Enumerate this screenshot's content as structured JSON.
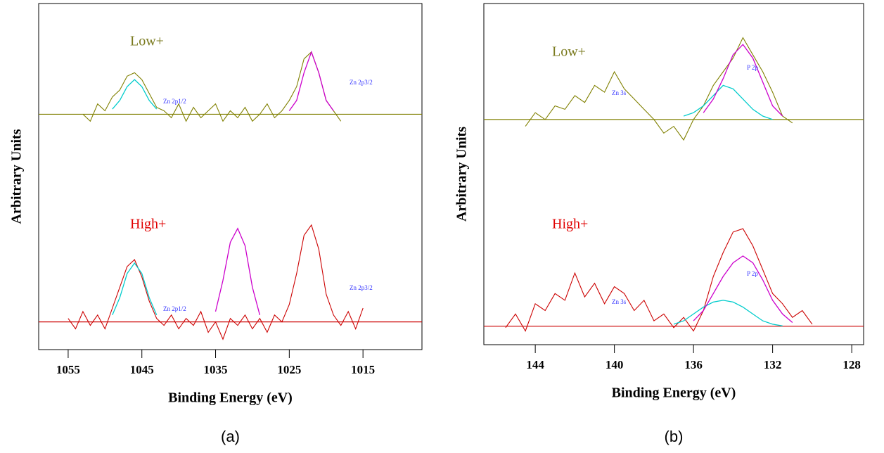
{
  "chart_data": [
    {
      "type": "line",
      "caption": "(a)",
      "xlabel": "Binding Energy (eV)",
      "ylabel": "Arbitrary Units",
      "xlim": [
        1059,
        1007
      ],
      "xticks": [
        1055,
        1045,
        1035,
        1025,
        1015
      ],
      "ylim": [
        0,
        100
      ],
      "x": [
        1055,
        1054,
        1053,
        1052,
        1051,
        1050,
        1049,
        1048,
        1047,
        1046,
        1045,
        1044,
        1043,
        1042,
        1041,
        1040,
        1039,
        1038,
        1037,
        1036,
        1035,
        1034,
        1033,
        1032,
        1031,
        1030,
        1029,
        1028,
        1027,
        1026,
        1025,
        1024,
        1023,
        1022,
        1021,
        1020,
        1019,
        1018,
        1017,
        1016,
        1015
      ],
      "baselines": [
        68,
        8
      ],
      "series": [
        {
          "name": "Low+",
          "color": "#808000",
          "values": [
            null,
            null,
            68,
            66,
            71,
            69,
            73,
            75,
            79,
            80,
            78,
            74,
            70,
            69,
            67,
            71,
            66,
            70,
            67,
            69,
            71,
            66,
            69,
            67,
            70,
            66,
            68,
            71,
            67,
            69,
            72,
            76,
            84,
            86,
            80,
            72,
            69,
            66,
            null,
            null,
            null
          ]
        },
        {
          "name": "High+",
          "color": "#cc0000",
          "values": [
            9,
            6,
            11,
            7,
            10,
            6,
            12,
            18,
            24,
            26,
            21,
            14,
            9,
            7,
            10,
            6,
            9,
            7,
            11,
            5,
            8,
            3,
            9,
            7,
            10,
            6,
            9,
            5,
            10,
            8,
            13,
            22,
            33,
            36,
            29,
            16,
            10,
            7,
            11,
            6,
            12
          ]
        },
        {
          "color": "#00cccc",
          "values": [
            null,
            null,
            null,
            null,
            null,
            null,
            69.5,
            72,
            76,
            78,
            76,
            72,
            69.5,
            null,
            null,
            null,
            null,
            null,
            null,
            null,
            null,
            null,
            null,
            null,
            null,
            null,
            null,
            null,
            null,
            null,
            null,
            null,
            null,
            null,
            null,
            null,
            null,
            null,
            null,
            null,
            null
          ]
        },
        {
          "color": "#cc00cc",
          "values": [
            null,
            null,
            null,
            null,
            null,
            null,
            null,
            null,
            null,
            null,
            null,
            null,
            null,
            null,
            null,
            null,
            null,
            null,
            null,
            null,
            null,
            null,
            null,
            null,
            null,
            null,
            null,
            null,
            null,
            null,
            69,
            72,
            80,
            86,
            80,
            72,
            69,
            null,
            null,
            null,
            null
          ]
        },
        {
          "color": "#00cccc",
          "values": [
            null,
            null,
            null,
            null,
            null,
            null,
            10,
            15,
            22,
            25,
            22,
            15,
            10,
            null,
            null,
            null,
            null,
            null,
            null,
            null,
            null,
            null,
            null,
            null,
            null,
            null,
            null,
            null,
            null,
            null,
            null,
            null,
            null,
            null,
            null,
            null,
            null,
            null,
            null,
            null,
            null
          ]
        },
        {
          "color": "#cc00cc",
          "values": [
            null,
            null,
            null,
            null,
            null,
            null,
            null,
            null,
            null,
            null,
            null,
            null,
            null,
            null,
            null,
            null,
            null,
            null,
            null,
            null,
            11,
            20,
            31,
            35,
            30,
            18,
            10,
            null,
            null,
            null,
            null,
            null,
            null,
            null,
            null,
            null,
            null,
            null,
            null,
            null,
            null
          ]
        }
      ],
      "annotations": [
        "Zn 2p1/2",
        "Zn 2p3/2",
        "Zn 2p1/2",
        "Zn 2p3/2"
      ]
    },
    {
      "type": "line",
      "caption": "(b)",
      "xlabel": "Binding Energy (eV)",
      "ylabel": "Arbitrary Units",
      "xlim": [
        146.6,
        127.4
      ],
      "xticks": [
        144,
        140,
        136,
        132,
        128
      ],
      "ylim": [
        0,
        100
      ],
      "x": [
        145.5,
        145,
        144.5,
        144,
        143.5,
        143,
        142.5,
        142,
        141.5,
        141,
        140.5,
        140,
        139.5,
        139,
        138.5,
        138,
        137.5,
        137,
        136.5,
        136,
        135.5,
        135,
        134.5,
        134,
        133.5,
        133,
        132.5,
        132,
        131.5,
        131,
        130.5,
        130
      ],
      "baselines": [
        66,
        5.4
      ],
      "series": [
        {
          "name": "Low+",
          "color": "#808000",
          "values": [
            null,
            null,
            64,
            68,
            66,
            70,
            69,
            73,
            71,
            76,
            74,
            80,
            75,
            72,
            69,
            66,
            62,
            64,
            60,
            66,
            70,
            76,
            80,
            84,
            90,
            85,
            80,
            74,
            67,
            65,
            null,
            null
          ]
        },
        {
          "name": "High+",
          "color": "#cc0000",
          "values": [
            5,
            9,
            4,
            12,
            10,
            15,
            13,
            21,
            14,
            18,
            12,
            17,
            15,
            10,
            13,
            7,
            9,
            5,
            8,
            4,
            10,
            20,
            27,
            33,
            34,
            29,
            22,
            15,
            12,
            8,
            10,
            6
          ]
        },
        {
          "color": "#00cccc",
          "values": [
            null,
            null,
            null,
            null,
            null,
            null,
            null,
            null,
            null,
            null,
            null,
            null,
            null,
            null,
            null,
            null,
            null,
            null,
            67,
            68,
            70,
            73,
            76,
            75,
            72,
            69,
            67,
            66,
            null,
            null,
            null,
            null
          ]
        },
        {
          "color": "#cc00cc",
          "values": [
            null,
            null,
            null,
            null,
            null,
            null,
            null,
            null,
            null,
            null,
            null,
            null,
            null,
            null,
            null,
            null,
            null,
            null,
            null,
            null,
            68,
            72,
            78,
            85,
            88,
            84,
            77,
            70,
            67,
            null,
            null,
            null
          ]
        },
        {
          "color": "#00cccc",
          "values": [
            null,
            null,
            null,
            null,
            null,
            null,
            null,
            null,
            null,
            null,
            null,
            null,
            null,
            null,
            null,
            null,
            null,
            6,
            7,
            9,
            11,
            12.5,
            13,
            12.5,
            11,
            9,
            7,
            6,
            5.5,
            null,
            null,
            null
          ]
        },
        {
          "color": "#cc00cc",
          "values": [
            null,
            null,
            null,
            null,
            null,
            null,
            null,
            null,
            null,
            null,
            null,
            null,
            null,
            null,
            null,
            null,
            null,
            null,
            null,
            7,
            10,
            15,
            20,
            24,
            26,
            24,
            19,
            13,
            9,
            6.5,
            null,
            null
          ]
        }
      ],
      "annotations": [
        "Zn 3s",
        "P 2p",
        "Zn 3s",
        "P 2p"
      ]
    }
  ]
}
